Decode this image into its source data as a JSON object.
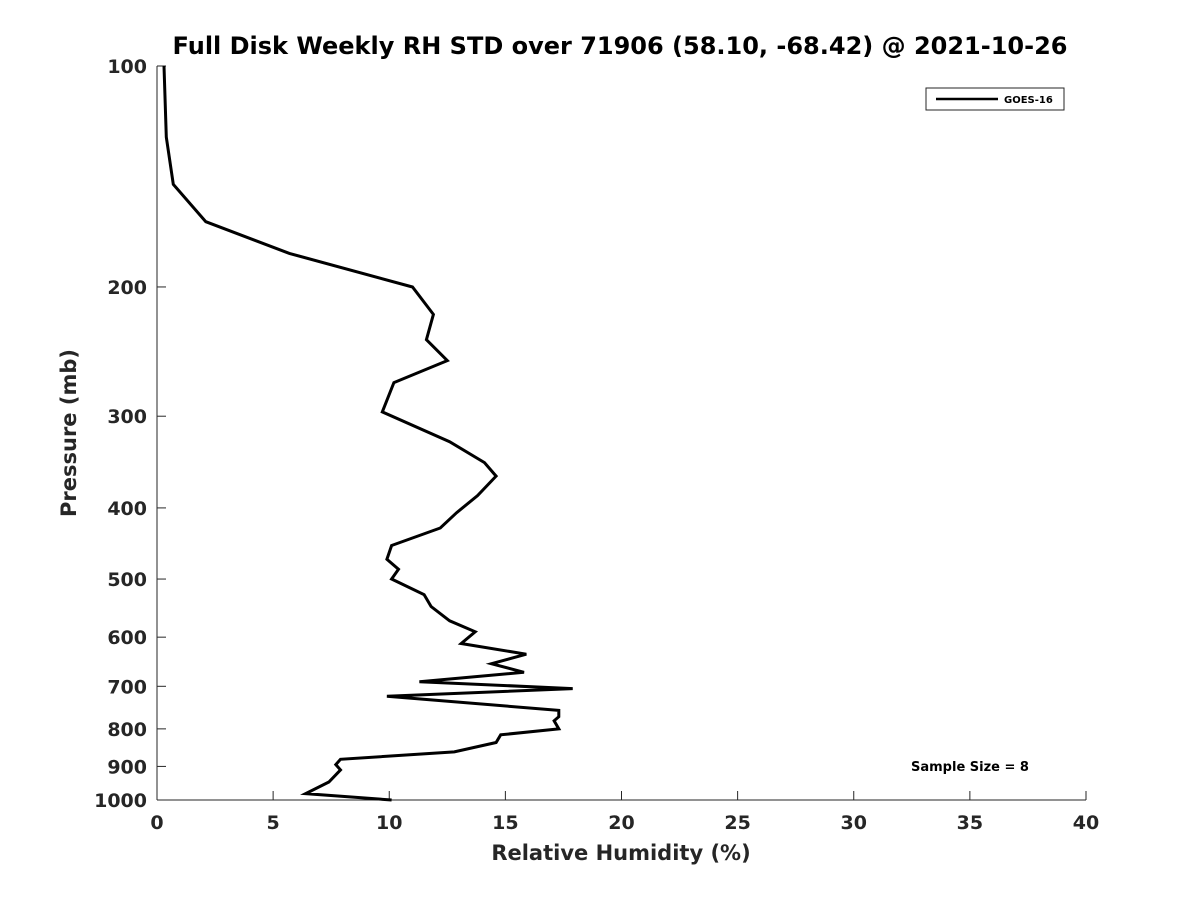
{
  "chart_data": {
    "type": "line",
    "title": "Full Disk Weekly RH STD over 71906 (58.10, -68.42) @ 2021-10-26",
    "xlabel": "Relative Humidity (%)",
    "ylabel": "Pressure (mb)",
    "xlim": [
      0,
      40
    ],
    "ylim": [
      100,
      1000
    ],
    "y_scale": "log",
    "y_reversed": true,
    "x_ticks": [
      0,
      5,
      10,
      15,
      20,
      25,
      30,
      35,
      40
    ],
    "y_ticks": [
      100,
      200,
      300,
      400,
      500,
      600,
      700,
      800,
      900,
      1000
    ],
    "grid": false,
    "legend_position": "top-right",
    "series": [
      {
        "name": "GOES-16",
        "color": "#000000",
        "x": [
          0.3,
          0.4,
          0.7,
          2.1,
          5.7,
          11.0,
          11.9,
          11.6,
          12.5,
          10.2,
          9.7,
          12.6,
          14.1,
          14.6,
          13.8,
          12.9,
          12.2,
          10.1,
          9.9,
          10.4,
          10.1,
          11.5,
          11.8,
          12.6,
          13.7,
          13.1,
          15.9,
          14.4,
          15.8,
          11.3,
          17.9,
          9.9,
          17.3,
          17.3,
          17.1,
          17.3,
          14.8,
          14.6,
          12.8,
          7.9,
          7.7,
          7.9,
          7.4,
          6.4,
          10.1
        ],
        "y": [
          100,
          125,
          145,
          163,
          180,
          200,
          218,
          236,
          252,
          270,
          296,
          325,
          347,
          362,
          385,
          406,
          426,
          450,
          470,
          485,
          500,
          525,
          545,
          570,
          590,
          612,
          633,
          652,
          670,
          690,
          705,
          722,
          755,
          770,
          780,
          800,
          815,
          835,
          860,
          880,
          895,
          910,
          945,
          980,
          1000
        ]
      }
    ],
    "annotation": "Sample Size = 8"
  }
}
